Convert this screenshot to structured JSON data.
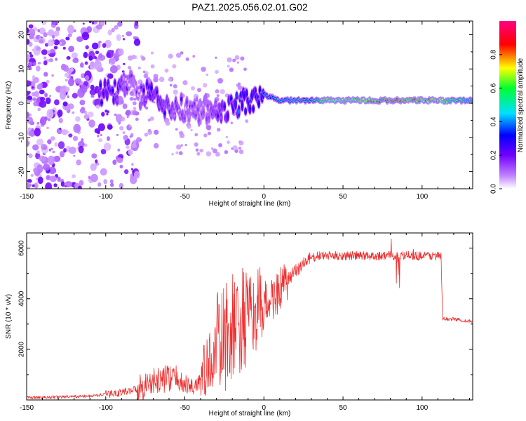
{
  "title": "PAZ1.2025.056.02.01.G02",
  "chart_data": [
    {
      "type": "heatmap",
      "xlabel": "Height of straight line (km)",
      "ylabel": "Frequency (Hz)",
      "xlim": [
        -150,
        132
      ],
      "ylim": [
        -25,
        24
      ],
      "xticks": [
        -150,
        -100,
        -50,
        0,
        50,
        100
      ],
      "yticks": [
        -20,
        -10,
        0,
        10,
        20
      ],
      "colorbar": {
        "label": "Normalized spectral amplitude",
        "range": [
          0,
          1
        ],
        "ticks": [
          "0.0",
          "0.2",
          "0.4",
          "0.6",
          "0.8"
        ],
        "colormap": "rainbow (white-violet-blue-cyan-green-yellow-red-magenta)"
      },
      "ridge": [
        {
          "x": -103,
          "y": 3,
          "v": 0.25
        },
        {
          "x": -95,
          "y": 2.5,
          "v": 0.25
        },
        {
          "x": -85,
          "y": 8,
          "v": 0.1
        },
        {
          "x": -80,
          "y": 1,
          "v": 0.1
        },
        {
          "x": -72,
          "y": 3,
          "v": 0.25
        },
        {
          "x": -64,
          "y": 0,
          "v": 0.2
        },
        {
          "x": -55,
          "y": -1,
          "v": 0.15
        },
        {
          "x": -45,
          "y": -2,
          "v": 0.1
        },
        {
          "x": -35,
          "y": -2,
          "v": 0.1
        },
        {
          "x": -25,
          "y": -2,
          "v": 0.25
        },
        {
          "x": -15,
          "y": 0,
          "v": 0.3
        },
        {
          "x": -5,
          "y": 1,
          "v": 0.3
        },
        {
          "x": 0,
          "y": 2.5,
          "v": 0.35
        },
        {
          "x": 10,
          "y": 0.8,
          "v": 0.5
        },
        {
          "x": 20,
          "y": 0.8,
          "v": 0.55
        },
        {
          "x": 30,
          "y": 0.8,
          "v": 0.5
        },
        {
          "x": 40,
          "y": 0.8,
          "v": 0.75
        },
        {
          "x": 50,
          "y": 0.8,
          "v": 0.75
        },
        {
          "x": 60,
          "y": 0.8,
          "v": 0.7
        },
        {
          "x": 70,
          "y": 0.8,
          "v": 0.85
        },
        {
          "x": 80,
          "y": 0.8,
          "v": 0.85
        },
        {
          "x": 90,
          "y": 0.8,
          "v": 0.8
        },
        {
          "x": 100,
          "y": 0.8,
          "v": 0.8
        },
        {
          "x": 110,
          "y": 0.8,
          "v": 0.75
        },
        {
          "x": 120,
          "y": 0.8,
          "v": 0.65
        },
        {
          "x": 132,
          "y": 0.8,
          "v": 0.6
        }
      ]
    },
    {
      "type": "line",
      "xlabel": "Height of straight line (km)",
      "ylabel": "SNR (10 * v/v)",
      "xlim": [
        -150,
        132
      ],
      "ylim": [
        0,
        6600
      ],
      "xticks": [
        -150,
        -100,
        -50,
        0,
        50,
        100
      ],
      "yticks": [
        2000,
        4000,
        6000
      ],
      "color": "#ee3030",
      "series": [
        {
          "x": [
            -150,
            -140,
            -130,
            -120,
            -110,
            -100,
            -90,
            -80,
            -75,
            -70,
            -65,
            -60,
            -55,
            -50,
            -45,
            -40,
            -35,
            -30,
            -25,
            -20,
            -15,
            -10,
            -5,
            0,
            5,
            10,
            15,
            20,
            25,
            30,
            35,
            40,
            45,
            50,
            55,
            60,
            65,
            70,
            75,
            80,
            85,
            90,
            95,
            100,
            105,
            110,
            112,
            113,
            115,
            120,
            125,
            132
          ],
          "y": [
            100,
            100,
            120,
            130,
            150,
            220,
            300,
            450,
            600,
            700,
            800,
            900,
            800,
            600,
            500,
            800,
            1400,
            2000,
            2400,
            2800,
            3000,
            3200,
            3500,
            3800,
            4000,
            4300,
            4700,
            5100,
            5400,
            5600,
            5700,
            5700,
            5700,
            5700,
            5700,
            5700,
            5700,
            5700,
            5700,
            5700,
            5700,
            5700,
            5700,
            5700,
            5700,
            5700,
            5650,
            3200,
            3200,
            3200,
            3150,
            3100
          ]
        }
      ]
    }
  ]
}
